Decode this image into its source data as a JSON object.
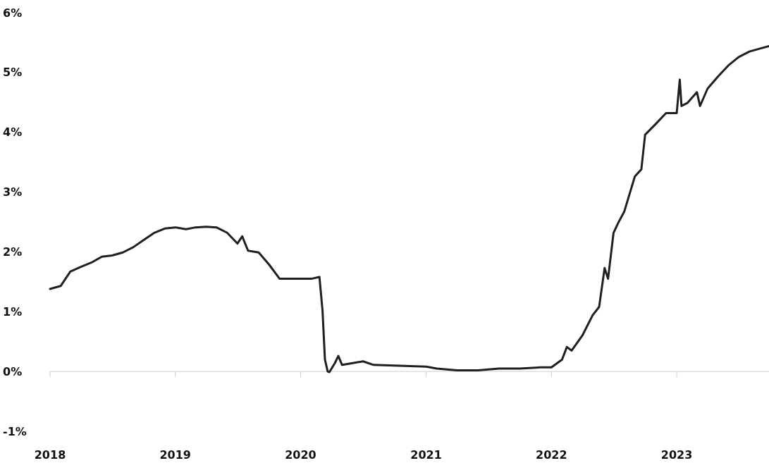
{
  "chart_data": {
    "type": "line",
    "x": [
      "2018-01-01",
      "2018-02-01",
      "2018-03-01",
      "2018-04-01",
      "2018-05-01",
      "2018-06-01",
      "2018-07-01",
      "2018-08-01",
      "2018-09-01",
      "2018-10-01",
      "2018-11-01",
      "2018-12-01",
      "2019-01-01",
      "2019-02-01",
      "2019-03-01",
      "2019-04-01",
      "2019-05-01",
      "2019-06-01",
      "2019-07-01",
      "2019-07-15",
      "2019-08-01",
      "2019-09-01",
      "2019-10-01",
      "2019-11-01",
      "2019-12-01",
      "2020-01-01",
      "2020-02-01",
      "2020-02-25",
      "2020-03-05",
      "2020-03-12",
      "2020-03-20",
      "2020-03-25",
      "2020-04-10",
      "2020-04-20",
      "2020-05-01",
      "2020-06-01",
      "2020-07-01",
      "2020-08-01",
      "2020-10-01",
      "2021-01-01",
      "2021-02-01",
      "2021-04-01",
      "2021-06-01",
      "2021-08-01",
      "2021-10-01",
      "2021-12-01",
      "2022-01-01",
      "2022-02-01",
      "2022-02-15",
      "2022-03-01",
      "2022-04-01",
      "2022-05-01",
      "2022-05-20",
      "2022-06-05",
      "2022-06-15",
      "2022-07-01",
      "2022-07-15",
      "2022-08-01",
      "2022-09-01",
      "2022-09-20",
      "2022-10-01",
      "2022-11-01",
      "2022-12-01",
      "2023-01-01",
      "2023-01-10",
      "2023-01-15",
      "2023-02-01",
      "2023-03-01",
      "2023-03-10",
      "2023-04-01",
      "2023-05-01",
      "2023-06-01",
      "2023-07-01",
      "2023-08-01",
      "2023-09-01",
      "2023-09-27"
    ],
    "series": [
      {
        "color": "#1f1f24",
        "values": [
          1.38,
          1.43,
          1.67,
          1.75,
          1.82,
          1.92,
          1.94,
          1.99,
          2.08,
          2.2,
          2.32,
          2.39,
          2.41,
          2.38,
          2.41,
          2.42,
          2.41,
          2.32,
          2.14,
          2.26,
          2.02,
          1.99,
          1.79,
          1.55,
          1.55,
          1.55,
          1.55,
          1.58,
          1.02,
          0.2,
          0.0,
          -0.01,
          0.14,
          0.26,
          0.11,
          0.14,
          0.17,
          0.11,
          0.1,
          0.08,
          0.05,
          0.02,
          0.02,
          0.05,
          0.05,
          0.07,
          0.07,
          0.2,
          0.41,
          0.35,
          0.6,
          0.94,
          1.08,
          1.73,
          1.55,
          2.32,
          2.49,
          2.67,
          3.26,
          3.38,
          3.96,
          4.14,
          4.32,
          4.32,
          4.88,
          4.44,
          4.49,
          4.67,
          4.44,
          4.73,
          4.93,
          5.12,
          5.26,
          5.35,
          5.4,
          5.44
        ]
      }
    ],
    "xlim": [
      "2018-01-01",
      "2023-09-27"
    ],
    "xticks": [
      "2018",
      "2019",
      "2020",
      "2021",
      "2022",
      "2023"
    ],
    "ylim": [
      -1,
      6
    ],
    "yticks": [
      {
        "value": -1,
        "label": "-1%"
      },
      {
        "value": 0,
        "label": "0%"
      },
      {
        "value": 1,
        "label": "1%"
      },
      {
        "value": 2,
        "label": "2%"
      },
      {
        "value": 3,
        "label": "3%"
      },
      {
        "value": 4,
        "label": "4%"
      },
      {
        "value": 5,
        "label": "5%"
      },
      {
        "value": 6,
        "label": "6%"
      }
    ],
    "line_style": "solid",
    "marker": "none"
  }
}
